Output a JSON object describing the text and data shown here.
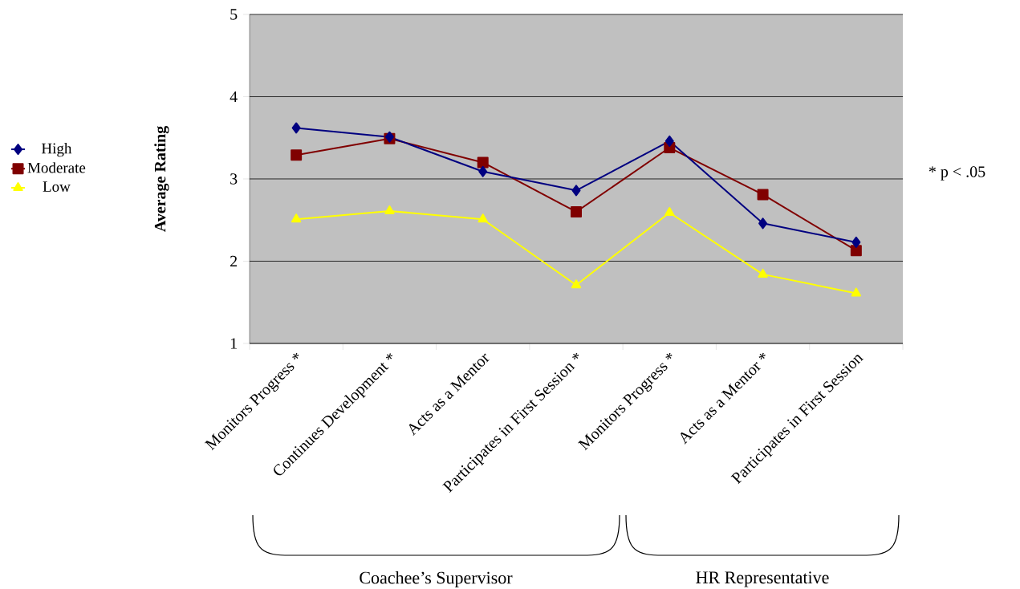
{
  "chart_data": {
    "type": "line",
    "ylabel": "Average Rating",
    "categories": [
      "Monitors Progress *",
      "Continues Development *",
      "Acts as a Mentor",
      "Participates in First Session *",
      "Monitors Progress *",
      "Acts as a Mentor *",
      "Participates in First Session"
    ],
    "series": [
      {
        "name": "High",
        "color": "#000080",
        "marker": "diamond",
        "values": [
          3.62,
          3.51,
          3.09,
          2.86,
          3.46,
          2.46,
          2.23
        ]
      },
      {
        "name": "Moderate",
        "color": "#800000",
        "marker": "square",
        "values": [
          3.29,
          3.49,
          3.2,
          2.6,
          3.38,
          2.81,
          2.13
        ]
      },
      {
        "name": "Low",
        "color": "#ffff00",
        "marker": "triangle",
        "values": [
          2.51,
          2.61,
          2.51,
          1.71,
          2.59,
          1.84,
          1.61
        ]
      }
    ],
    "ylim": [
      1,
      5
    ],
    "yticks": [
      1,
      2,
      3,
      4,
      5
    ],
    "grid": "y",
    "legend": "left",
    "line_style": "solid",
    "annotations": [
      "*   p < .05",
      "Coachee’s Supervisor",
      "HR Representative"
    ]
  }
}
